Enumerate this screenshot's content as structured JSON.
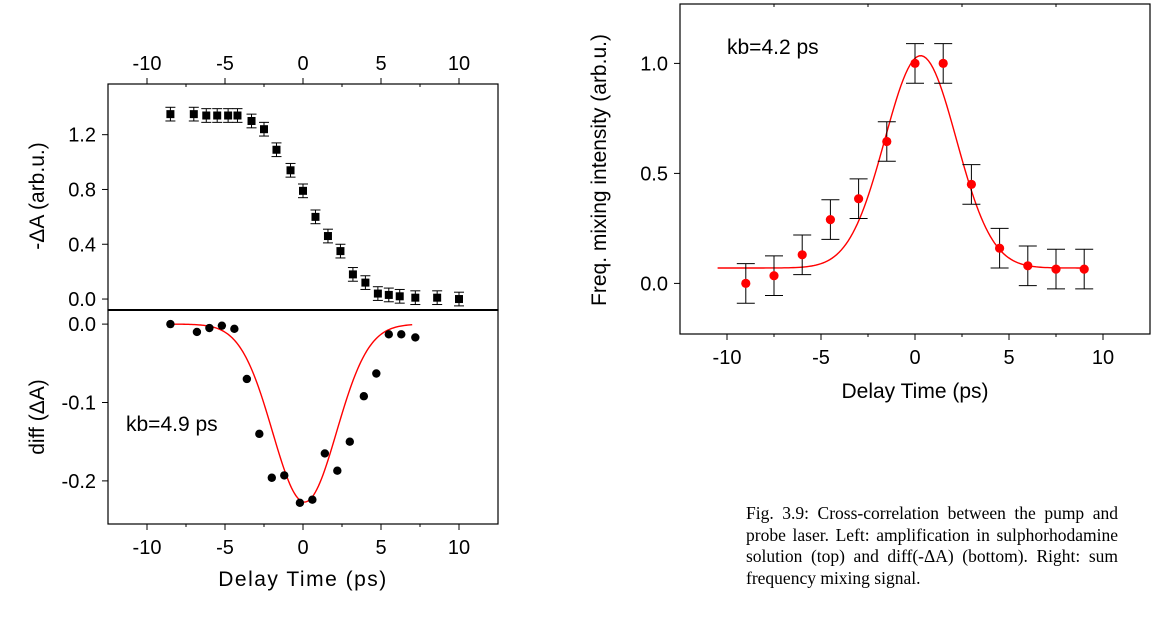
{
  "chart_data": [
    {
      "type": "scatter",
      "panel": "left-top",
      "title": "",
      "xlabel": "",
      "ylabel": "-ΔA (arb.u.)",
      "xlim": [
        -12.5,
        12.5
      ],
      "ylim": [
        -0.08,
        1.57
      ],
      "xticks": [
        -10,
        -5,
        0,
        5,
        10
      ],
      "xtick_labels": [
        "-10",
        "-5",
        "0",
        "5",
        "10"
      ],
      "xticks_position": "top",
      "yticks": [
        0.0,
        0.4,
        0.8,
        1.2
      ],
      "ytick_labels": [
        "0.0",
        "0.4",
        "0.8",
        "1.2"
      ],
      "marker": "square",
      "color": "#000000",
      "series": [
        {
          "x": [
            -8.5,
            -7,
            -6.2,
            -5.5,
            -4.8,
            -4.2,
            -3.3,
            -2.5,
            -1.7,
            -0.8,
            0,
            0.8,
            1.6,
            2.4,
            3.2,
            4,
            4.8,
            5.5,
            6.2,
            7.2,
            8.6,
            10
          ],
          "y": [
            1.35,
            1.35,
            1.34,
            1.34,
            1.34,
            1.34,
            1.3,
            1.24,
            1.09,
            0.94,
            0.79,
            0.6,
            0.46,
            0.35,
            0.18,
            0.12,
            0.04,
            0.03,
            0.02,
            0.01,
            0.01,
            0.0
          ],
          "error": [
            0.05,
            0.05,
            0.05,
            0.05,
            0.05,
            0.05,
            0.05,
            0.05,
            0.05,
            0.05,
            0.05,
            0.05,
            0.05,
            0.05,
            0.05,
            0.05,
            0.05,
            0.05,
            0.05,
            0.05,
            0.05,
            0.05
          ]
        }
      ]
    },
    {
      "type": "scatter",
      "panel": "left-bottom",
      "title": "",
      "xlabel": "Delay Time (ps)",
      "ylabel": "diff (ΔA)",
      "xlim": [
        -12.5,
        12.5
      ],
      "ylim": [
        -0.255,
        0.018
      ],
      "xticks": [
        -10,
        -5,
        0,
        5,
        10
      ],
      "xtick_labels": [
        "-10",
        "-5",
        "0",
        "5",
        "10"
      ],
      "yticks": [
        0.0,
        -0.1,
        -0.2
      ],
      "ytick_labels": [
        "0.0",
        "-0.1",
        "-0.2"
      ],
      "annotation": "kb=4.9 ps",
      "marker": "circle",
      "color": "#000000",
      "series": [
        {
          "x": [
            -8.5,
            -6.8,
            -6,
            -5.2,
            -4.4,
            -3.6,
            -2.8,
            -2,
            -1.2,
            -0.2,
            0.6,
            1.4,
            2.2,
            3,
            3.9,
            4.7,
            5.5,
            6.3,
            7.2
          ],
          "y": [
            0.0,
            -0.01,
            -0.005,
            -0.002,
            -0.006,
            -0.07,
            -0.14,
            -0.196,
            -0.193,
            -0.228,
            -0.224,
            -0.165,
            -0.187,
            -0.15,
            -0.092,
            -0.063,
            -0.013,
            -0.013,
            -0.017
          ]
        }
      ],
      "fit": {
        "type": "gaussian",
        "color": "#ff0000",
        "center": 0.1,
        "amplitude": -0.227,
        "offset": 0.0,
        "sigma": 2.05,
        "x_range": [
          -8.5,
          7.0
        ]
      }
    },
    {
      "type": "scatter",
      "panel": "right",
      "title": "",
      "xlabel": "Delay Time (ps)",
      "ylabel": "Freq. mixing intensity (arb.u.)",
      "xlim": [
        -12.5,
        12.5
      ],
      "ylim": [
        -0.23,
        1.27
      ],
      "xticks": [
        -10,
        -5,
        0,
        5,
        10
      ],
      "xtick_labels": [
        "-10",
        "-5",
        "0",
        "5",
        "10"
      ],
      "yticks": [
        0.0,
        0.5,
        1.0
      ],
      "ytick_labels": [
        "0.0",
        "0.5",
        "1.0"
      ],
      "annotation": "kb=4.2 ps",
      "marker": "circle",
      "color": "#ff0000",
      "series": [
        {
          "x": [
            -9,
            -7.5,
            -6,
            -4.5,
            -3,
            -1.5,
            0,
            1.5,
            3,
            4.5,
            6,
            7.5,
            9
          ],
          "y": [
            0.0,
            0.035,
            0.13,
            0.29,
            0.385,
            0.645,
            1.0,
            1.0,
            0.45,
            0.16,
            0.08,
            0.065,
            0.065
          ],
          "error": [
            0.09,
            0.09,
            0.09,
            0.09,
            0.09,
            0.09,
            0.09,
            0.09,
            0.09,
            0.09,
            0.09,
            0.09,
            0.09
          ]
        }
      ],
      "fit": {
        "type": "gaussian",
        "color": "#ff0000",
        "center": 0.3,
        "amplitude": 0.965,
        "offset": 0.07,
        "sigma": 1.9,
        "x_range": [
          -10.5,
          9.0
        ]
      }
    }
  ],
  "caption": {
    "text": "Fig. 3.9: Cross-correlation between the pump and probe laser. Left: amplification in sulphorhodamine solution (top) and diff(-ΔA) (bottom). Right: sum frequency mixing signal."
  }
}
